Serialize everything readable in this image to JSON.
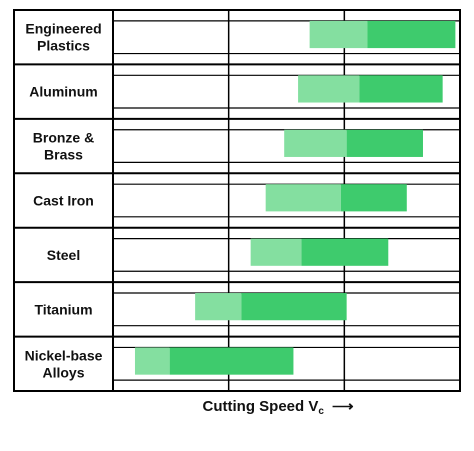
{
  "chart_data": {
    "type": "bar",
    "bar_kind": "floating-range",
    "xlabel": "Cutting Speed V",
    "xlabel_subscript": "c",
    "xlabel_arrow": "⟶",
    "xlim": [
      0,
      3
    ],
    "grid": true,
    "categories": [
      {
        "label": [
          "Engineered",
          "Plastics"
        ],
        "light_start": 1.7,
        "light_end": 2.2,
        "dark_end": 2.96
      },
      {
        "label": [
          "Aluminum"
        ],
        "light_start": 1.6,
        "light_end": 2.13,
        "dark_end": 2.85
      },
      {
        "label": [
          "Bronze &",
          "Brass"
        ],
        "light_start": 1.48,
        "light_end": 2.02,
        "dark_end": 2.68
      },
      {
        "label": [
          "Cast Iron"
        ],
        "light_start": 1.32,
        "light_end": 1.97,
        "dark_end": 2.54
      },
      {
        "label": [
          "Steel"
        ],
        "light_start": 1.19,
        "light_end": 1.63,
        "dark_end": 2.38
      },
      {
        "label": [
          "Titanium"
        ],
        "light_start": 0.71,
        "light_end": 1.11,
        "dark_end": 2.02
      },
      {
        "label": [
          "Nickel-base",
          "Alloys"
        ],
        "light_start": 0.19,
        "light_end": 0.49,
        "dark_end": 1.56
      }
    ],
    "colors": {
      "light": "#84dfa0",
      "dark": "#3ecb6d",
      "grid": "#000000"
    }
  }
}
